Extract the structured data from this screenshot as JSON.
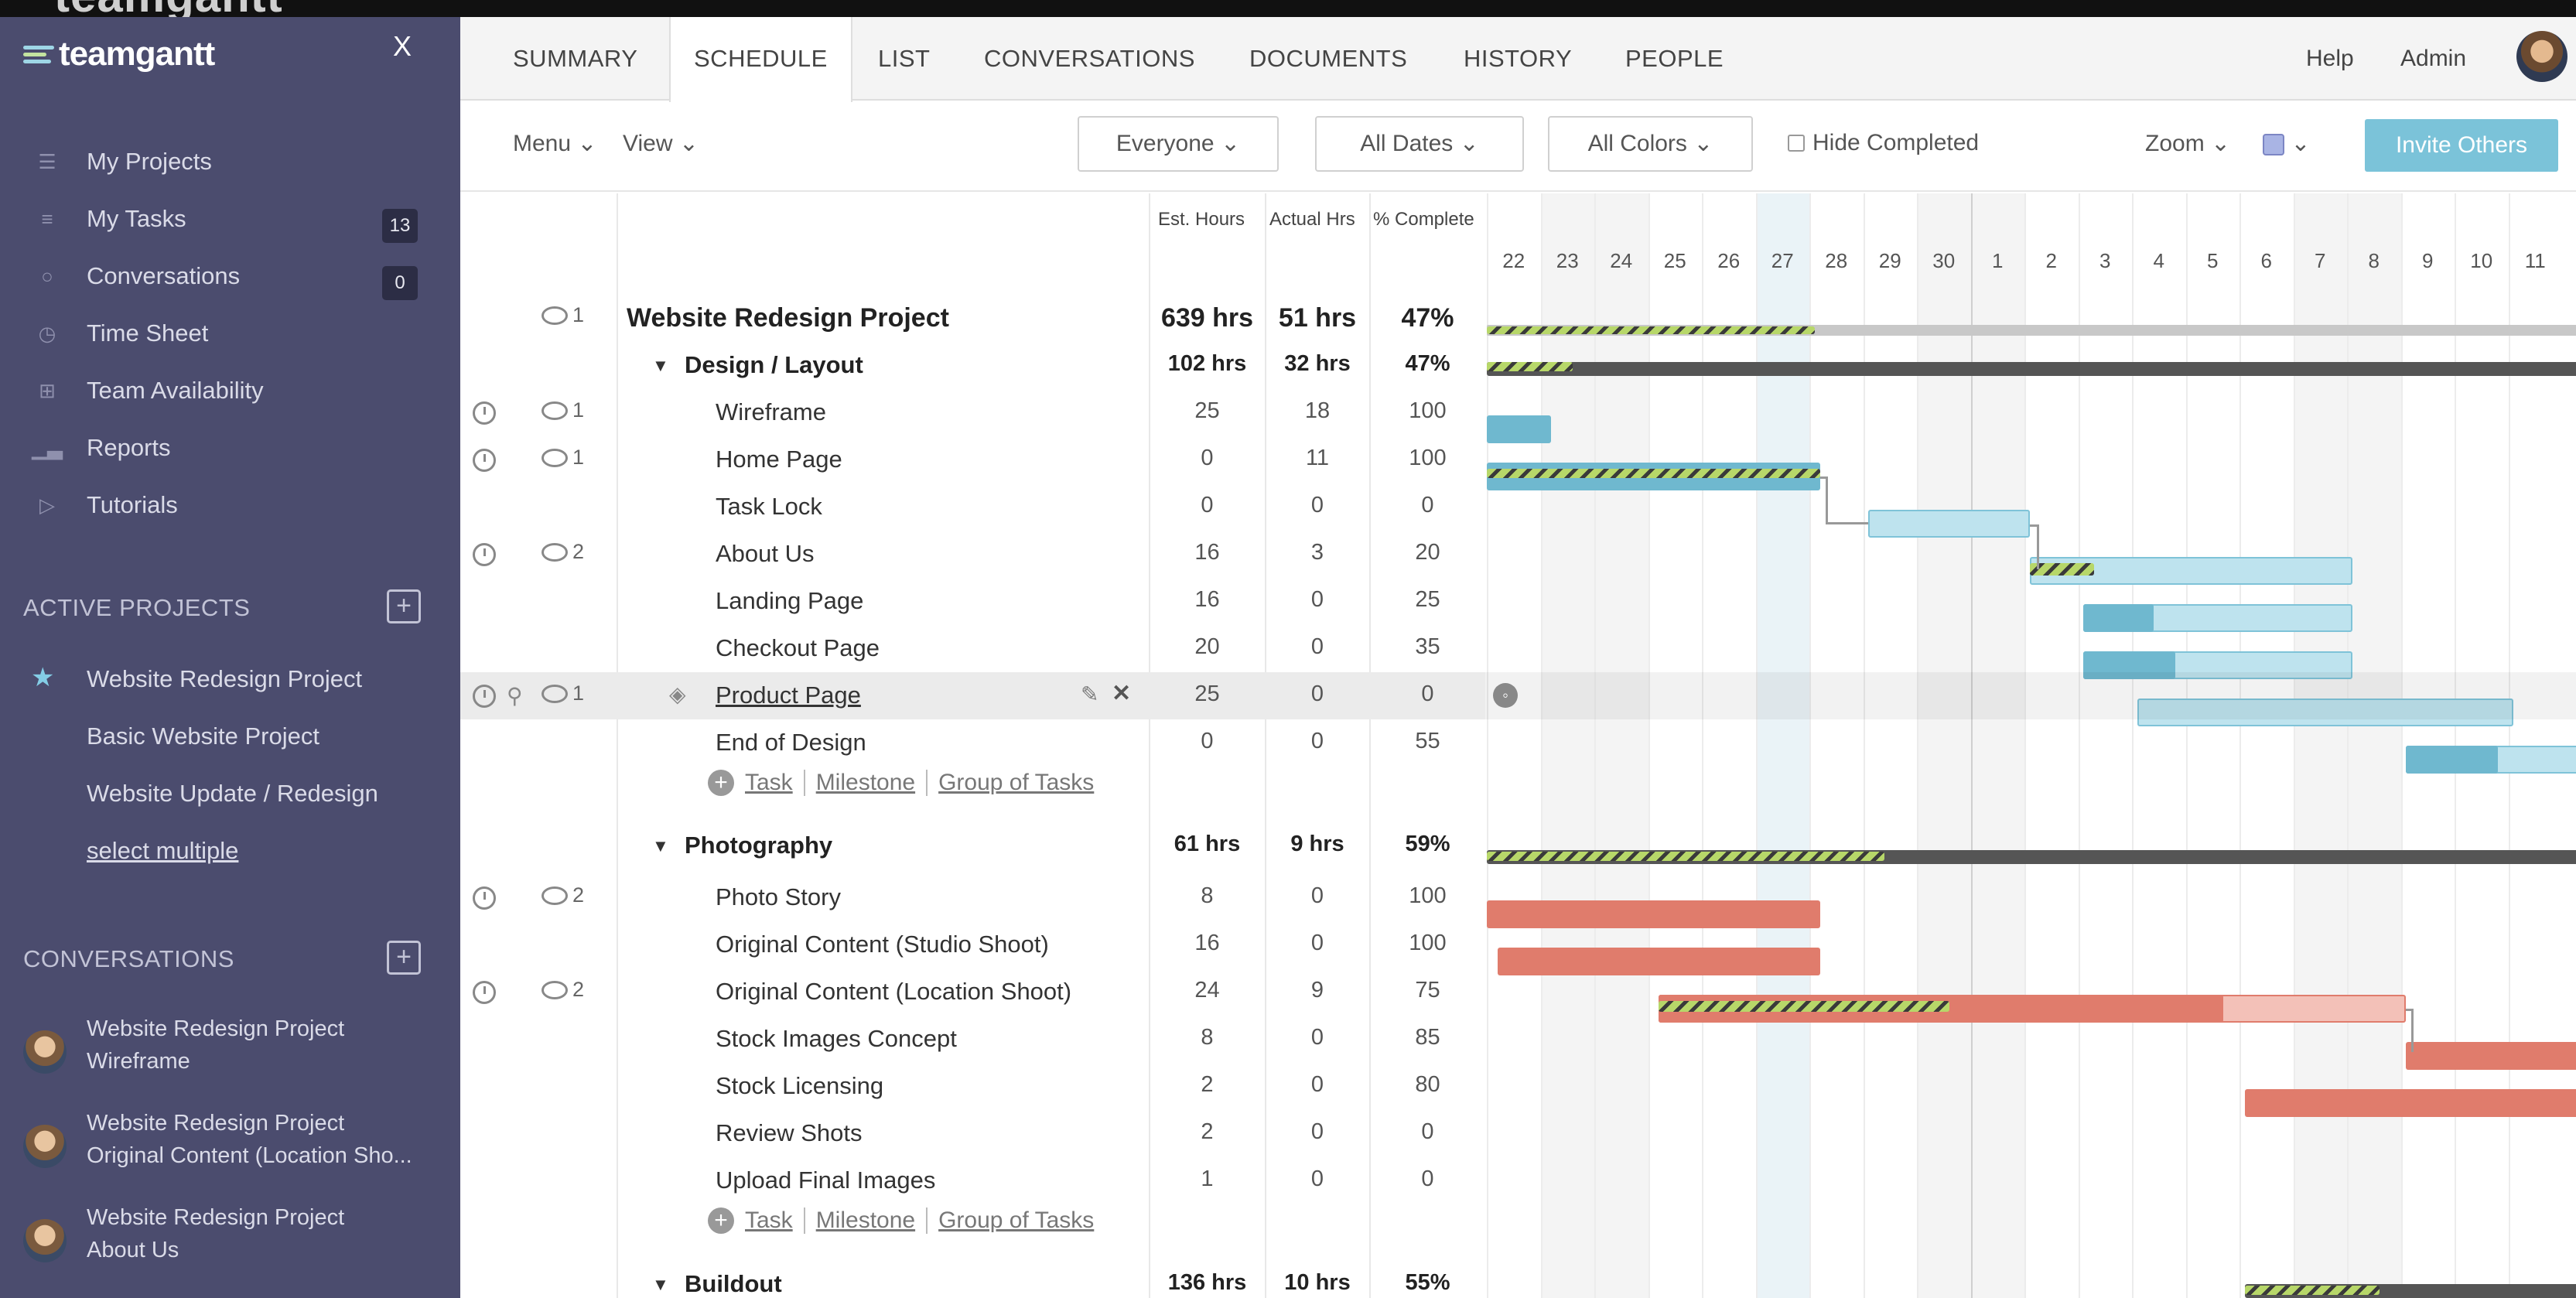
{
  "brand": {
    "name": "teamgantt",
    "close": "X"
  },
  "sidebar": {
    "nav": [
      {
        "label": "My Projects",
        "icon": "list-icon"
      },
      {
        "label": "My Tasks",
        "icon": "tasks-icon",
        "count": "13"
      },
      {
        "label": "Conversations",
        "icon": "chat-icon",
        "count": "0"
      },
      {
        "label": "Time Sheet",
        "icon": "clock-icon"
      },
      {
        "label": "Team Availability",
        "icon": "grid-icon"
      },
      {
        "label": "Reports",
        "icon": "bar-chart-icon"
      },
      {
        "label": "Tutorials",
        "icon": "play-icon"
      }
    ],
    "active_projects_title": "ACTIVE PROJECTS",
    "projects": [
      "Website Redesign Project",
      "Basic Website Project",
      "Website Update / Redesign"
    ],
    "select_multiple": "select multiple",
    "conversations_title": "CONVERSATIONS",
    "conversations": [
      {
        "project": "Website Redesign Project",
        "topic": "Wireframe"
      },
      {
        "project": "Website Redesign Project",
        "topic": "Original Content (Location Sho..."
      },
      {
        "project": "Website Redesign Project",
        "topic": "About Us"
      }
    ]
  },
  "tabs": [
    "SUMMARY",
    "SCHEDULE",
    "LIST",
    "CONVERSATIONS",
    "DOCUMENTS",
    "HISTORY",
    "PEOPLE"
  ],
  "active_tab": "SCHEDULE",
  "header": {
    "help": "Help",
    "admin": "Admin"
  },
  "toolbar": {
    "menu": "Menu",
    "view": "View",
    "everyone": "Everyone",
    "all_dates": "All Dates",
    "all_colors": "All Colors",
    "hide_completed": "Hide Completed",
    "zoom": "Zoom",
    "invite": "Invite Others",
    "color_swatch": "#a9b4e4"
  },
  "columns": {
    "est": "Est. Hours",
    "actual": "Actual Hrs",
    "complete": "% Complete"
  },
  "days": [
    "22",
    "23",
    "24",
    "25",
    "26",
    "27",
    "28",
    "29",
    "30",
    "1",
    "2",
    "3",
    "4",
    "5",
    "6",
    "7",
    "8",
    "9",
    "10",
    "11"
  ],
  "project": {
    "name": "Website Redesign Project",
    "est": "639 hrs",
    "actual": "51 hrs",
    "complete": "47%",
    "comments": "1"
  },
  "groups": [
    {
      "name": "Design / Layout",
      "est": "102 hrs",
      "actual": "32 hrs",
      "complete": "47%"
    },
    {
      "name": "Photography",
      "est": "61 hrs",
      "actual": "9 hrs",
      "complete": "59%"
    },
    {
      "name": "Buildout",
      "est": "136 hrs",
      "actual": "10 hrs",
      "complete": "55%"
    }
  ],
  "tasks": [
    {
      "name": "Wireframe",
      "est": "25",
      "actual": "18",
      "complete": "100",
      "comments": "1"
    },
    {
      "name": "Home Page",
      "est": "0",
      "actual": "11",
      "complete": "100",
      "comments": "1"
    },
    {
      "name": "Task Lock",
      "est": "0",
      "actual": "0",
      "complete": "0"
    },
    {
      "name": "About Us",
      "est": "16",
      "actual": "3",
      "complete": "20",
      "comments": "2"
    },
    {
      "name": "Landing Page",
      "est": "16",
      "actual": "0",
      "complete": "25"
    },
    {
      "name": "Checkout Page",
      "est": "20",
      "actual": "0",
      "complete": "35"
    },
    {
      "name": "Product Page",
      "est": "25",
      "actual": "0",
      "complete": "0",
      "comments": "1"
    },
    {
      "name": "End of Design",
      "est": "0",
      "actual": "0",
      "complete": "55"
    },
    {
      "name": "Photo Story",
      "est": "8",
      "actual": "0",
      "complete": "100",
      "comments": "2"
    },
    {
      "name": "Original Content (Studio Shoot)",
      "est": "16",
      "actual": "0",
      "complete": "100"
    },
    {
      "name": "Original Content (Location Shoot)",
      "est": "24",
      "actual": "9",
      "complete": "75",
      "comments": "2"
    },
    {
      "name": "Stock Images Concept",
      "est": "8",
      "actual": "0",
      "complete": "85"
    },
    {
      "name": "Stock Licensing",
      "est": "2",
      "actual": "0",
      "complete": "80"
    },
    {
      "name": "Review Shots",
      "est": "2",
      "actual": "0",
      "complete": "0"
    },
    {
      "name": "Upload Final Images",
      "est": "1",
      "actual": "0",
      "complete": "0"
    }
  ],
  "add_links": {
    "task": "Task",
    "milestone": "Milestone",
    "group": "Group of Tasks"
  },
  "colors": {
    "sidebar": "#4b4c6e",
    "blue_bar": "#6fb8cf",
    "red_bar": "#e07c6c",
    "invite": "#7bc3d9"
  }
}
